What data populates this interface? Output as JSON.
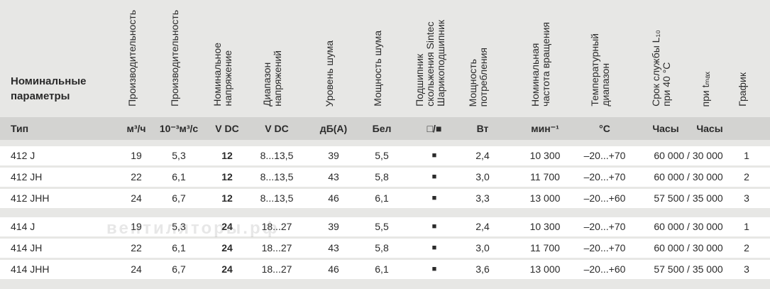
{
  "header": {
    "title": [
      "Номинальные",
      "параметры"
    ],
    "type_label": "Тип",
    "columns": [
      {
        "lines": [
          "Производительность"
        ],
        "unit": "м³/ч"
      },
      {
        "lines": [
          "Производительность"
        ],
        "unit": "10⁻³м³/с"
      },
      {
        "lines": [
          "Номинальное",
          "напряжение"
        ],
        "unit": "V DC"
      },
      {
        "lines": [
          "Диапазон",
          "напряжений"
        ],
        "unit": "V DC"
      },
      {
        "lines": [
          "Уровень шума"
        ],
        "unit": "дБ(A)"
      },
      {
        "lines": [
          "Мощность шума"
        ],
        "unit": "Бел"
      },
      {
        "lines": [
          "Подшипник",
          "скольжения Sintec",
          "Шарикоподшипник"
        ],
        "unit": "□/■"
      },
      {
        "lines": [
          "Мощность",
          "потребления"
        ],
        "unit": "Вт"
      },
      {
        "lines": [
          "Номинальная",
          "частота вращения"
        ],
        "unit": "мин⁻¹"
      },
      {
        "lines": [
          "Температурный",
          "диапазон"
        ],
        "unit": "°C"
      },
      {
        "lines": [
          "Срок службы L₁₀",
          "при 40 °C"
        ],
        "unit": "Часы"
      },
      {
        "lines": [
          "при tₘₐₓ"
        ],
        "unit": "Часы"
      },
      {
        "lines": [
          "График"
        ]
      }
    ]
  },
  "table": {
    "groups": [
      [
        [
          "412 J",
          "19",
          "5,3",
          "12",
          "8...13,5",
          "39",
          "5,5",
          "■",
          "2,4",
          "10 300",
          "–20...+70",
          "60 000 / 30 000",
          "1"
        ],
        [
          "412 JH",
          "22",
          "6,1",
          "12",
          "8...13,5",
          "43",
          "5,8",
          "■",
          "3,0",
          "11 700",
          "–20...+70",
          "60 000 / 30 000",
          "2"
        ],
        [
          "412 JHH",
          "24",
          "6,7",
          "12",
          "8...13,5",
          "46",
          "6,1",
          "■",
          "3,3",
          "13 000",
          "–20...+60",
          "57 500 / 35 000",
          "3"
        ]
      ],
      [
        [
          "414 J",
          "19",
          "5,3",
          "24",
          "18...27",
          "39",
          "5,5",
          "■",
          "2,4",
          "10 300",
          "–20...+70",
          "60 000 / 30 000",
          "1"
        ],
        [
          "414 JH",
          "22",
          "6,1",
          "24",
          "18...27",
          "43",
          "5,8",
          "■",
          "3,0",
          "11 700",
          "–20...+70",
          "60 000 / 30 000",
          "2"
        ],
        [
          "414 JHH",
          "24",
          "6,7",
          "24",
          "18...27",
          "46",
          "6,1",
          "■",
          "3,6",
          "13 000",
          "–20...+60",
          "57 500 / 35 000",
          "3"
        ]
      ]
    ]
  },
  "watermark": "вентиляторы.рф"
}
